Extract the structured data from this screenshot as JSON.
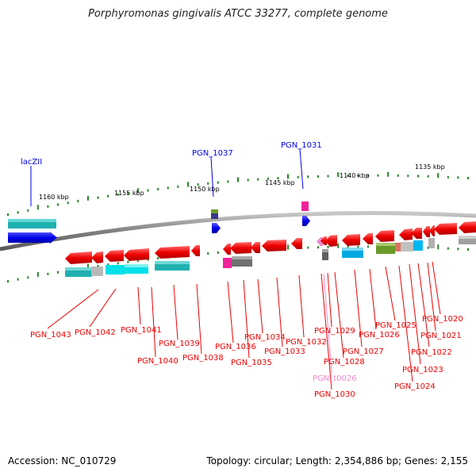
{
  "title": "Porphyromonas gingivalis ATCC 33277, complete genome",
  "footer": {
    "accession": "Accession: NC_010729",
    "summary": "Topology: circular; Length: 2,354,886 bp; Genes: 2,155"
  },
  "scale": {
    "unit": "kbp",
    "ticks": [
      "1160 kbp",
      "1155 kbp",
      "1150 kbp",
      "1145 kbp",
      "1140 kbp",
      "1135 kbp"
    ]
  },
  "top_labels": [
    {
      "id": "lacZII",
      "text": "lacZII"
    },
    {
      "id": "pgn1037",
      "text": "PGN_1037"
    },
    {
      "id": "pgn1031",
      "text": "PGN_1031"
    }
  ],
  "bottom_labels": [
    {
      "id": "pgn1043",
      "text": "PGN_1043"
    },
    {
      "id": "pgn1042",
      "text": "PGN_1042"
    },
    {
      "id": "pgn1041",
      "text": "PGN_1041"
    },
    {
      "id": "pgn1040",
      "text": "PGN_1040"
    },
    {
      "id": "pgn1039",
      "text": "PGN_1039"
    },
    {
      "id": "pgn1038",
      "text": "PGN_1038"
    },
    {
      "id": "pgn1036",
      "text": "PGN_1036"
    },
    {
      "id": "pgn1035",
      "text": "PGN_1035"
    },
    {
      "id": "pgn1034",
      "text": "PGN_1034"
    },
    {
      "id": "pgn1033",
      "text": "PGN_1033"
    },
    {
      "id": "pgn1032",
      "text": "PGN_1032"
    },
    {
      "id": "pgn1029",
      "text": "PGN_1029"
    },
    {
      "id": "pgn1028",
      "text": "PGN_1028"
    },
    {
      "id": "pgn1027",
      "text": "PGN_1027"
    },
    {
      "id": "pgn1026",
      "text": "PGN_1026"
    },
    {
      "id": "pgn1025",
      "text": "PGN_1025"
    },
    {
      "id": "pgn1024",
      "text": "PGN_1024"
    },
    {
      "id": "pgn1023",
      "text": "PGN_1023"
    },
    {
      "id": "pgn1022",
      "text": "PGN_1022"
    },
    {
      "id": "pgn1021",
      "text": "PGN_1021"
    },
    {
      "id": "pgn1020",
      "text": "PGN_1020"
    },
    {
      "id": "pgnt0026",
      "text": "PGN_t0026"
    },
    {
      "id": "pgn1030",
      "text": "PGN_1030"
    }
  ],
  "colors": {
    "plus_strand": "#0000ee",
    "minus_strand": "#ee0000",
    "rna": "#ee88cc",
    "backbone": "#808080",
    "tick": "#228822",
    "cyan": "#00d0d8",
    "teal": "#20b0b0",
    "olive": "#6a9a2a",
    "magenta": "#ee2299",
    "grey": "#a0a0a0",
    "sky": "#00a8e0"
  }
}
